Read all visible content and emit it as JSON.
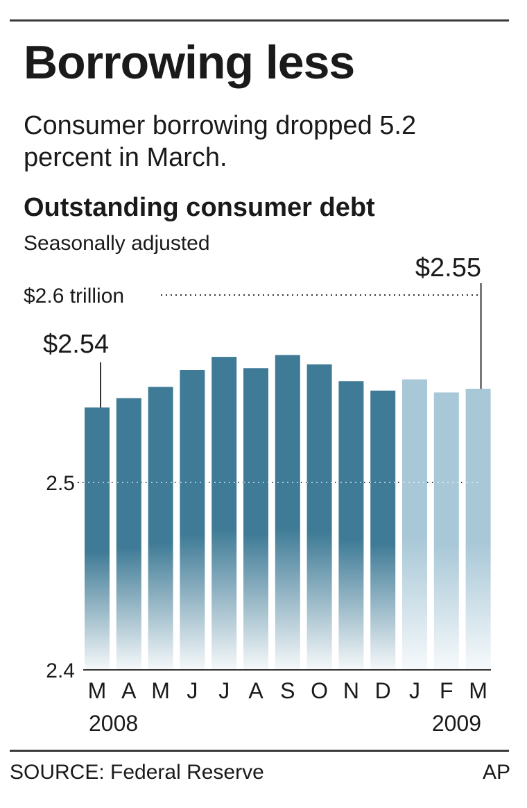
{
  "headline": "Borrowing less",
  "deck": "Consumer borrowing dropped 5.2 percent in March.",
  "source": "SOURCE: Federal Reserve",
  "credit": "AP",
  "colors": {
    "bar_2008": "#3f7b96",
    "bar_2009": "#a9c8d7",
    "text": "#1a1a1a"
  },
  "chart_data": {
    "type": "bar",
    "title": "Outstanding consumer debt",
    "subtitle": "Seasonally adjusted",
    "categories": [
      "M",
      "A",
      "M",
      "J",
      "J",
      "A",
      "S",
      "O",
      "N",
      "D",
      "J",
      "F",
      "M"
    ],
    "year_labels": [
      "2008",
      "2009"
    ],
    "values": [
      2.54,
      2.545,
      2.551,
      2.56,
      2.567,
      2.561,
      2.568,
      2.563,
      2.554,
      2.549,
      2.555,
      2.548,
      2.55
    ],
    "series_year": [
      "2008",
      "2008",
      "2008",
      "2008",
      "2008",
      "2008",
      "2008",
      "2008",
      "2008",
      "2008",
      "2009",
      "2009",
      "2009"
    ],
    "ylim": [
      2.4,
      2.6
    ],
    "yticks": [
      {
        "value": 2.6,
        "label": "$2.6 trillion"
      },
      {
        "value": 2.5,
        "label": "2.5"
      },
      {
        "value": 2.4,
        "label": "2.4"
      }
    ],
    "annotations": [
      {
        "index": 0,
        "label": "$2.54"
      },
      {
        "index": 12,
        "label": "$2.55"
      }
    ],
    "grid": "dotted lines at 2.6 and 2.5"
  }
}
